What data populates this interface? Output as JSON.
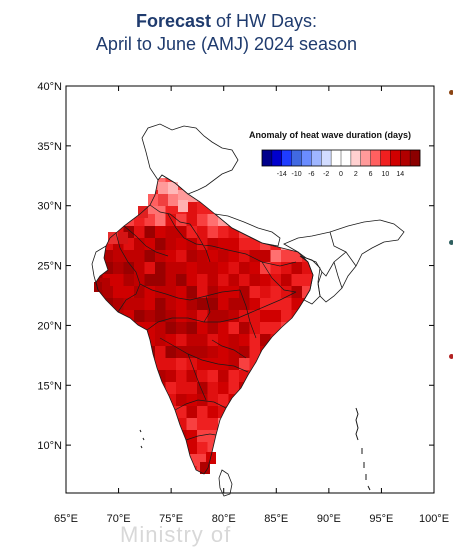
{
  "title": {
    "bold": "Forecast",
    "rest": " of HW Days:",
    "line2": "April to June (AMJ) 2024 season"
  },
  "map": {
    "lat_ticks": [
      "40°N",
      "35°N",
      "30°N",
      "25°N",
      "20°N",
      "15°N",
      "10°N"
    ],
    "lon_ticks": [
      "65°E",
      "70°E",
      "75°E",
      "80°E",
      "85°E",
      "90°E",
      "95°E",
      "100°E"
    ],
    "lat_range": [
      6,
      40
    ],
    "lon_range": [
      65,
      100
    ]
  },
  "legend": {
    "title": "Anomaly of heat wave duration (days)",
    "tick_labels": [
      "-14",
      "-10",
      "-6",
      "-2",
      "0",
      "2",
      "6",
      "10",
      "14"
    ],
    "colors": [
      "#00008b",
      "#0000cd",
      "#1e3cff",
      "#4169e1",
      "#6a8cff",
      "#9fb6ff",
      "#d2dcff",
      "#ffffff",
      "#ffffff",
      "#ffd0d0",
      "#ff9a9a",
      "#ff6060",
      "#f02020",
      "#d00000",
      "#b00000",
      "#8b0000"
    ]
  },
  "watermark": "Ministry of",
  "colors": {
    "title": "#1f3b6e",
    "bullet_brown": "#8b4513",
    "bullet_teal": "#2f5f5f",
    "bullet_red": "#b22222"
  }
}
